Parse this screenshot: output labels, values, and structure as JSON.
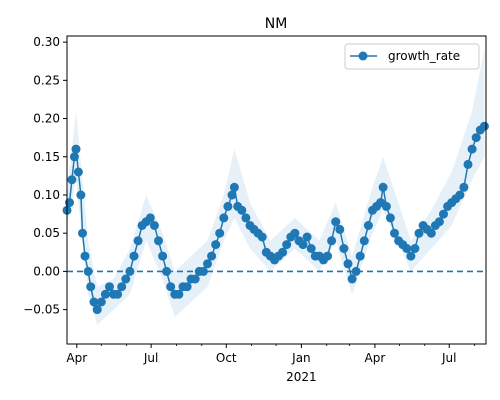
{
  "chart_data": {
    "type": "line",
    "title": "NM",
    "xlabel": "",
    "ylabel": "",
    "x_range": [
      "2020-03-20",
      "2021-08-15"
    ],
    "ylim": [
      -0.095,
      0.308
    ],
    "y_ticks": [
      -0.05,
      0.0,
      0.05,
      0.1,
      0.15,
      0.2,
      0.25,
      0.3
    ],
    "y_tick_labels": [
      "−0.05",
      "0.00",
      "0.05",
      "0.10",
      "0.15",
      "0.20",
      "0.25",
      "0.30"
    ],
    "x_major_ticks": [
      {
        "date": "2020-04-01",
        "label": "Apr"
      },
      {
        "date": "2020-07-01",
        "label": "Jul"
      },
      {
        "date": "2020-10-01",
        "label": "Oct"
      },
      {
        "date": "2021-01-01",
        "label": "Jan"
      },
      {
        "date": "2021-04-01",
        "label": "Apr"
      },
      {
        "date": "2021-07-01",
        "label": "Jul"
      }
    ],
    "x_minor_ticks": [
      "2020-05-01",
      "2020-06-01",
      "2020-08-01",
      "2020-09-01",
      "2020-11-01",
      "2020-12-01",
      "2021-02-01",
      "2021-03-01",
      "2021-05-01",
      "2021-06-01",
      "2021-08-01"
    ],
    "x_secondary_label": {
      "date": "2021-01-01",
      "label": "2021"
    },
    "grid": false,
    "legend": {
      "position": "top-right",
      "entries": [
        "growth_rate"
      ]
    },
    "reference_line": {
      "y": 0.0,
      "style": "dashed"
    },
    "colors": {
      "series": "#1f77b4",
      "band": "#dce9f5"
    },
    "series": [
      {
        "name": "growth_rate",
        "points": [
          [
            "2020-03-20",
            0.08
          ],
          [
            "2020-03-23",
            0.09
          ],
          [
            "2020-03-26",
            0.12
          ],
          [
            "2020-03-29",
            0.15
          ],
          [
            "2020-03-31",
            0.16
          ],
          [
            "2020-04-03",
            0.13
          ],
          [
            "2020-04-06",
            0.1
          ],
          [
            "2020-04-08",
            0.05
          ],
          [
            "2020-04-11",
            0.02
          ],
          [
            "2020-04-15",
            0.0
          ],
          [
            "2020-04-18",
            -0.02
          ],
          [
            "2020-04-22",
            -0.04
          ],
          [
            "2020-04-26",
            -0.05
          ],
          [
            "2020-05-01",
            -0.04
          ],
          [
            "2020-05-06",
            -0.03
          ],
          [
            "2020-05-11",
            -0.02
          ],
          [
            "2020-05-16",
            -0.03
          ],
          [
            "2020-05-21",
            -0.03
          ],
          [
            "2020-05-26",
            -0.02
          ],
          [
            "2020-05-31",
            -0.01
          ],
          [
            "2020-06-05",
            0.0
          ],
          [
            "2020-06-10",
            0.02
          ],
          [
            "2020-06-15",
            0.04
          ],
          [
            "2020-06-20",
            0.06
          ],
          [
            "2020-06-25",
            0.065
          ],
          [
            "2020-06-30",
            0.07
          ],
          [
            "2020-07-05",
            0.06
          ],
          [
            "2020-07-10",
            0.04
          ],
          [
            "2020-07-15",
            0.02
          ],
          [
            "2020-07-20",
            0.0
          ],
          [
            "2020-07-25",
            -0.02
          ],
          [
            "2020-07-30",
            -0.03
          ],
          [
            "2020-08-04",
            -0.03
          ],
          [
            "2020-08-09",
            -0.02
          ],
          [
            "2020-08-14",
            -0.02
          ],
          [
            "2020-08-19",
            -0.01
          ],
          [
            "2020-08-24",
            -0.01
          ],
          [
            "2020-08-29",
            0.0
          ],
          [
            "2020-09-03",
            0.0
          ],
          [
            "2020-09-08",
            0.01
          ],
          [
            "2020-09-13",
            0.02
          ],
          [
            "2020-09-18",
            0.035
          ],
          [
            "2020-09-23",
            0.05
          ],
          [
            "2020-09-28",
            0.07
          ],
          [
            "2020-10-03",
            0.085
          ],
          [
            "2020-10-08",
            0.1
          ],
          [
            "2020-10-11",
            0.11
          ],
          [
            "2020-10-15",
            0.085
          ],
          [
            "2020-10-20",
            0.08
          ],
          [
            "2020-10-25",
            0.07
          ],
          [
            "2020-10-30",
            0.06
          ],
          [
            "2020-11-04",
            0.055
          ],
          [
            "2020-11-09",
            0.05
          ],
          [
            "2020-11-14",
            0.045
          ],
          [
            "2020-11-19",
            0.025
          ],
          [
            "2020-11-24",
            0.02
          ],
          [
            "2020-11-29",
            0.015
          ],
          [
            "2020-12-04",
            0.02
          ],
          [
            "2020-12-09",
            0.025
          ],
          [
            "2020-12-14",
            0.035
          ],
          [
            "2020-12-19",
            0.045
          ],
          [
            "2020-12-24",
            0.05
          ],
          [
            "2020-12-29",
            0.04
          ],
          [
            "2021-01-03",
            0.035
          ],
          [
            "2021-01-08",
            0.045
          ],
          [
            "2021-01-13",
            0.03
          ],
          [
            "2021-01-18",
            0.02
          ],
          [
            "2021-01-23",
            0.02
          ],
          [
            "2021-01-28",
            0.015
          ],
          [
            "2021-02-02",
            0.02
          ],
          [
            "2021-02-07",
            0.04
          ],
          [
            "2021-02-12",
            0.065
          ],
          [
            "2021-02-17",
            0.055
          ],
          [
            "2021-02-22",
            0.03
          ],
          [
            "2021-02-27",
            0.01
          ],
          [
            "2021-03-04",
            -0.01
          ],
          [
            "2021-03-09",
            0.0
          ],
          [
            "2021-03-14",
            0.02
          ],
          [
            "2021-03-19",
            0.04
          ],
          [
            "2021-03-24",
            0.06
          ],
          [
            "2021-03-29",
            0.08
          ],
          [
            "2021-04-03",
            0.085
          ],
          [
            "2021-04-08",
            0.09
          ],
          [
            "2021-04-11",
            0.11
          ],
          [
            "2021-04-15",
            0.085
          ],
          [
            "2021-04-20",
            0.07
          ],
          [
            "2021-04-25",
            0.05
          ],
          [
            "2021-04-30",
            0.04
          ],
          [
            "2021-05-05",
            0.035
          ],
          [
            "2021-05-10",
            0.03
          ],
          [
            "2021-05-15",
            0.02
          ],
          [
            "2021-05-20",
            0.03
          ],
          [
            "2021-05-25",
            0.05
          ],
          [
            "2021-05-30",
            0.06
          ],
          [
            "2021-06-04",
            0.055
          ],
          [
            "2021-06-09",
            0.05
          ],
          [
            "2021-06-14",
            0.06
          ],
          [
            "2021-06-19",
            0.065
          ],
          [
            "2021-06-24",
            0.075
          ],
          [
            "2021-06-29",
            0.085
          ],
          [
            "2021-07-04",
            0.09
          ],
          [
            "2021-07-09",
            0.095
          ],
          [
            "2021-07-14",
            0.1
          ],
          [
            "2021-07-19",
            0.11
          ],
          [
            "2021-07-24",
            0.14
          ],
          [
            "2021-07-29",
            0.16
          ],
          [
            "2021-08-03",
            0.175
          ],
          [
            "2021-08-08",
            0.185
          ],
          [
            "2021-08-13",
            0.19
          ]
        ]
      }
    ],
    "band": [
      [
        "2020-03-20",
        0.06,
        0.1
      ],
      [
        "2020-03-31",
        0.12,
        0.21
      ],
      [
        "2020-04-15",
        -0.03,
        0.04
      ],
      [
        "2020-04-26",
        -0.07,
        -0.02
      ],
      [
        "2020-05-16",
        -0.05,
        -0.01
      ],
      [
        "2020-06-05",
        -0.03,
        0.03
      ],
      [
        "2020-06-25",
        0.04,
        0.1
      ],
      [
        "2020-07-15",
        -0.01,
        0.05
      ],
      [
        "2020-07-30",
        -0.06,
        0.0
      ],
      [
        "2020-08-19",
        -0.04,
        0.02
      ],
      [
        "2020-09-08",
        -0.02,
        0.04
      ],
      [
        "2020-09-28",
        0.04,
        0.1
      ],
      [
        "2020-10-11",
        0.07,
        0.16
      ],
      [
        "2020-10-30",
        0.03,
        0.09
      ],
      [
        "2020-11-24",
        0.0,
        0.04
      ],
      [
        "2020-12-24",
        0.03,
        0.07
      ],
      [
        "2021-01-23",
        0.0,
        0.04
      ],
      [
        "2021-02-12",
        0.04,
        0.09
      ],
      [
        "2021-03-04",
        -0.03,
        0.02
      ],
      [
        "2021-03-29",
        0.05,
        0.11
      ],
      [
        "2021-04-11",
        0.08,
        0.15
      ],
      [
        "2021-05-15",
        0.0,
        0.04
      ],
      [
        "2021-06-09",
        0.03,
        0.08
      ],
      [
        "2021-07-04",
        0.06,
        0.13
      ],
      [
        "2021-07-29",
        0.12,
        0.21
      ],
      [
        "2021-08-13",
        0.15,
        0.29
      ]
    ]
  }
}
